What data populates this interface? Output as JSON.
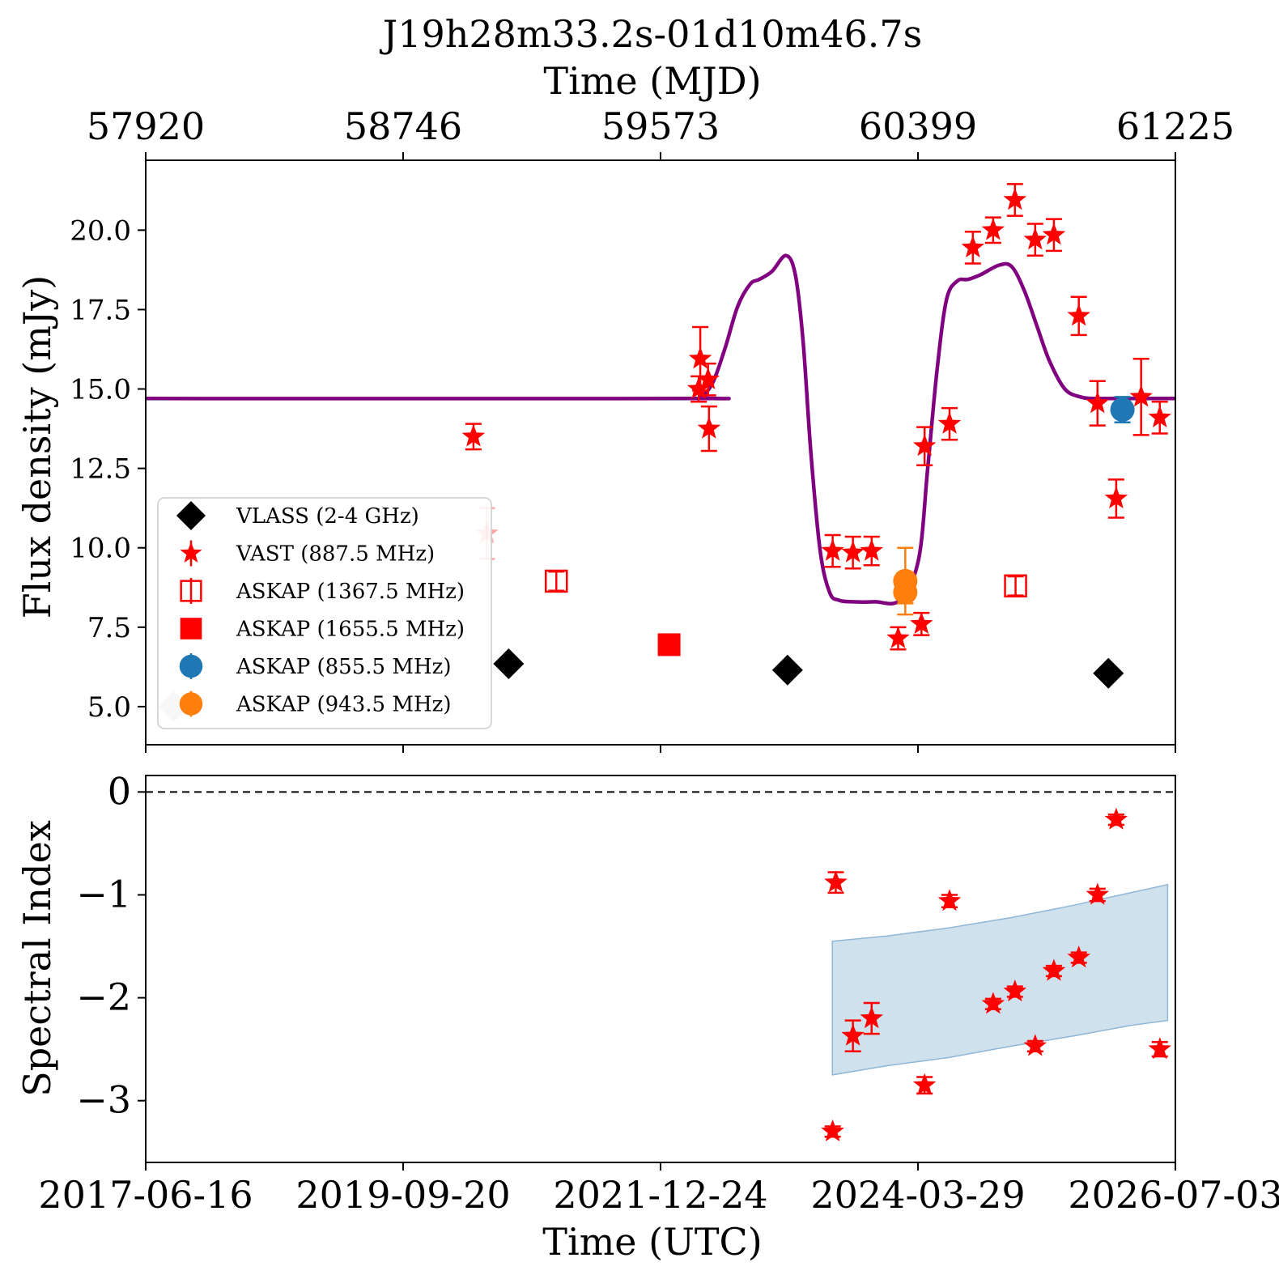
{
  "chart_data": [
    {
      "type": "scatter",
      "title": "J19h28m33.2s-01d10m46.7s",
      "top_xlabel": "Time (MJD)",
      "top_xticks": [
        "57920",
        "58746",
        "59573",
        "60399",
        "61225"
      ],
      "xlabel": "Time (UTC)",
      "xticks_utc": [
        "2017-06-16",
        "2019-09-20",
        "2021-12-24",
        "2024-03-29",
        "2026-07-03"
      ],
      "xlim_mjd": [
        57920,
        61225
      ],
      "ylabel": "Flux density (mJy)",
      "ylim": [
        3.8,
        22.2
      ],
      "yticks": [
        "5.0",
        "7.5",
        "10.0",
        "12.5",
        "15.0",
        "17.5",
        "20.0"
      ],
      "grid": false,
      "legend_position": "lower-left",
      "legend": [
        {
          "key": "vlass",
          "label": "VLASS (2-4 GHz)",
          "marker": "diamond",
          "color": "#000000"
        },
        {
          "key": "vast",
          "label": "VAST (887.5 MHz)",
          "marker": "star",
          "color": "#ff0000"
        },
        {
          "key": "askap1367",
          "label": "ASKAP (1367.5 MHz)",
          "marker": "open-square",
          "color": "#ff0000"
        },
        {
          "key": "askap1655",
          "label": "ASKAP (1655.5 MHz)",
          "marker": "square",
          "color": "#ff0000"
        },
        {
          "key": "askap855",
          "label": "ASKAP (855.5 MHz)",
          "marker": "circle",
          "color": "#1f77b4"
        },
        {
          "key": "askap943",
          "label": "ASKAP (943.5 MHz)",
          "marker": "circle",
          "color": "#ff7f0e"
        }
      ],
      "series": [
        {
          "key": "vlass",
          "points": [
            {
              "x": 58010,
              "y": 5.0,
              "faded": true
            },
            {
              "x": 59085,
              "y": 6.35
            },
            {
              "x": 59980,
              "y": 6.15
            },
            {
              "x": 61010,
              "y": 6.05
            }
          ]
        },
        {
          "key": "vast",
          "points": [
            {
              "x": 58972,
              "y": 13.5,
              "err": 0.4
            },
            {
              "x": 59015,
              "y": 10.45,
              "err": 0.8,
              "faded": true
            },
            {
              "x": 59695,
              "y": 15.0,
              "err": 0.4
            },
            {
              "x": 59700,
              "y": 15.95,
              "err": 1.0
            },
            {
              "x": 59725,
              "y": 15.3,
              "err": 0.5
            },
            {
              "x": 59728,
              "y": 13.75,
              "err": 0.7
            },
            {
              "x": 60125,
              "y": 9.9,
              "err": 0.5
            },
            {
              "x": 60190,
              "y": 9.85,
              "err": 0.5
            },
            {
              "x": 60250,
              "y": 9.9,
              "err": 0.45
            },
            {
              "x": 60335,
              "y": 7.15,
              "err": 0.35
            },
            {
              "x": 60410,
              "y": 7.6,
              "err": 0.35
            },
            {
              "x": 60420,
              "y": 13.2,
              "err": 0.6
            },
            {
              "x": 60500,
              "y": 13.9,
              "err": 0.5
            },
            {
              "x": 60575,
              "y": 19.45,
              "err": 0.5
            },
            {
              "x": 60640,
              "y": 20.0,
              "err": 0.4
            },
            {
              "x": 60710,
              "y": 20.95,
              "err": 0.5
            },
            {
              "x": 60775,
              "y": 19.7,
              "err": 0.5
            },
            {
              "x": 60835,
              "y": 19.85,
              "err": 0.5
            },
            {
              "x": 60915,
              "y": 17.3,
              "err": 0.6
            },
            {
              "x": 60975,
              "y": 14.55,
              "err": 0.7
            },
            {
              "x": 61035,
              "y": 11.55,
              "err": 0.6
            },
            {
              "x": 61115,
              "y": 14.75,
              "err": 1.2
            },
            {
              "x": 61175,
              "y": 14.1,
              "err": 0.5
            }
          ]
        },
        {
          "key": "askap1367",
          "points": [
            {
              "x": 59238,
              "y": 8.95,
              "err": 0.3
            },
            {
              "x": 60712,
              "y": 8.8,
              "err": 0.3
            }
          ]
        },
        {
          "key": "askap1655",
          "points": [
            {
              "x": 59600,
              "y": 6.95
            }
          ]
        },
        {
          "key": "askap855",
          "points": [
            {
              "x": 61055,
              "y": 14.35,
              "err": 0.4
            }
          ]
        },
        {
          "key": "askap943",
          "points": [
            {
              "x": 60358,
              "y": 8.95,
              "err": 1.05
            },
            {
              "x": 60358,
              "y": 8.6,
              "err": 0.35
            }
          ]
        }
      ],
      "model_curve": {
        "color": "#800080",
        "baseline": 14.7,
        "x": [
          57920,
          59650,
          59700,
          59740,
          59780,
          59820,
          59860,
          59890,
          59930,
          59975,
          60005,
          60030,
          60055,
          60085,
          60115,
          60145,
          60190,
          60260,
          60340,
          60400,
          60430,
          60460,
          60490,
          60525,
          60560,
          60600,
          60660,
          60700,
          60740,
          60780,
          60820,
          60870,
          60920,
          60960,
          61010,
          61225
        ],
        "y": [
          14.7,
          14.7,
          14.75,
          15.2,
          16.3,
          17.6,
          18.3,
          18.45,
          18.7,
          19.2,
          18.6,
          16.5,
          13.0,
          9.9,
          8.6,
          8.35,
          8.3,
          8.3,
          8.35,
          9.6,
          12.5,
          15.6,
          17.8,
          18.4,
          18.45,
          18.6,
          18.9,
          18.85,
          18.1,
          17.0,
          15.9,
          15.0,
          14.75,
          14.7,
          14.7,
          14.7
        ]
      }
    },
    {
      "type": "scatter",
      "ylabel": "Spectral Index",
      "xlim_mjd": [
        57920,
        61225
      ],
      "ylim": [
        -3.6,
        0.16
      ],
      "yticks": [
        "0",
        "−1",
        "−2",
        "−3"
      ],
      "reference_line": {
        "y": 0,
        "style": "dashed",
        "color": "#000000"
      },
      "band": {
        "color": "#b0cde3",
        "x": [
          60124,
          60300,
          60500,
          60700,
          60900,
          61080,
          61200
        ],
        "upper": [
          -1.45,
          -1.4,
          -1.32,
          -1.22,
          -1.1,
          -0.98,
          -0.9
        ],
        "lower": [
          -2.75,
          -2.66,
          -2.58,
          -2.47,
          -2.37,
          -2.27,
          -2.22
        ]
      },
      "series": [
        {
          "key": "vast",
          "points": [
            {
              "x": 60125,
              "y": -3.3,
              "err": 0.05
            },
            {
              "x": 60135,
              "y": -0.88,
              "err": 0.1
            },
            {
              "x": 60190,
              "y": -2.37,
              "err": 0.15
            },
            {
              "x": 60250,
              "y": -2.2,
              "err": 0.15
            },
            {
              "x": 60420,
              "y": -2.85,
              "err": 0.08
            },
            {
              "x": 60500,
              "y": -1.06,
              "err": 0.06
            },
            {
              "x": 60640,
              "y": -2.06,
              "err": 0.05
            },
            {
              "x": 60710,
              "y": -1.94,
              "err": 0.05
            },
            {
              "x": 60775,
              "y": -2.47,
              "err": 0.05
            },
            {
              "x": 60835,
              "y": -1.74,
              "err": 0.05
            },
            {
              "x": 60915,
              "y": -1.61,
              "err": 0.05
            },
            {
              "x": 60975,
              "y": -1.0,
              "err": 0.06
            },
            {
              "x": 61035,
              "y": -0.27,
              "err": 0.05
            },
            {
              "x": 61175,
              "y": -2.5,
              "err": 0.07
            }
          ]
        }
      ]
    }
  ]
}
